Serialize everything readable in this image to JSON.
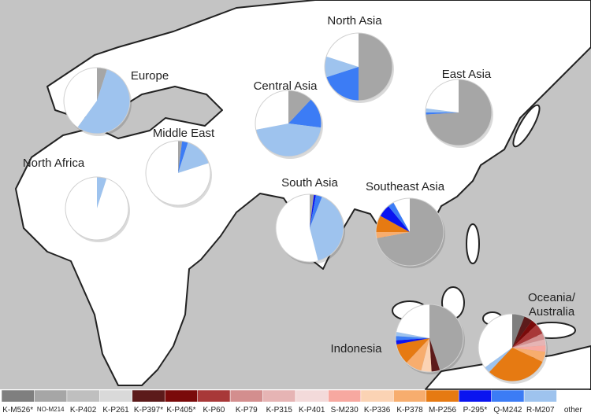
{
  "chart_data": {
    "type": "pie",
    "categories": [
      "K-M526*",
      "NO-M214",
      "K-P402",
      "K-P261",
      "K-P397*",
      "K-P405*",
      "K-P60",
      "K-P79",
      "K-P315",
      "K-P401",
      "S-M230",
      "K-P336",
      "K-P378",
      "M-P256",
      "P-295*",
      "Q-M242",
      "R-M207",
      "other"
    ],
    "colors": [
      "#7f7f7f",
      "#a6a6a6",
      "#bfbfbf",
      "#d9d9d9",
      "#5c1a1a",
      "#7a0a0a",
      "#a83838",
      "#d38e8e",
      "#e6b4b4",
      "#f3dada",
      "#f7a8a0",
      "#fbd3b4",
      "#f7ad6e",
      "#e67a12",
      "#0a14f0",
      "#3c7cf5",
      "#9ec3ee",
      "#ffffff"
    ],
    "series": [
      {
        "name": "Europe",
        "values": [
          0,
          5,
          0,
          0,
          0,
          0,
          0,
          0,
          0,
          0,
          0,
          0,
          0,
          0,
          0,
          0,
          55,
          40
        ]
      },
      {
        "name": "North Asia",
        "values": [
          0,
          50,
          0,
          0,
          0,
          0,
          0,
          0,
          0,
          0,
          0,
          0,
          0,
          0,
          0,
          20,
          10,
          20
        ]
      },
      {
        "name": "East Asia",
        "values": [
          0,
          74,
          0,
          0,
          0,
          0,
          0,
          0,
          0,
          0,
          0,
          0,
          0,
          0,
          0,
          1,
          2,
          23
        ]
      },
      {
        "name": "Central Asia",
        "values": [
          0,
          12,
          0,
          0,
          0,
          0,
          0,
          0,
          0,
          0,
          0,
          0,
          0,
          0,
          0,
          15,
          45,
          28
        ]
      },
      {
        "name": "Middle East",
        "values": [
          0,
          2,
          0,
          0,
          0,
          0,
          0,
          0,
          0,
          0,
          0,
          0,
          0,
          0,
          0,
          3,
          15,
          80
        ]
      },
      {
        "name": "North Africa",
        "values": [
          0,
          0,
          0,
          0,
          0,
          0,
          0,
          0,
          0,
          0,
          0,
          0,
          0,
          0,
          0,
          0,
          5,
          95
        ]
      },
      {
        "name": "South Asia",
        "values": [
          0,
          2,
          0,
          0,
          0,
          0,
          0,
          0,
          0,
          0,
          0,
          0,
          0,
          0,
          1,
          3,
          40,
          54
        ]
      },
      {
        "name": "Southeast Asia",
        "values": [
          0,
          72,
          0,
          0,
          0,
          0,
          0,
          0,
          0,
          0,
          0,
          0,
          3,
          8,
          6,
          3,
          0,
          8
        ]
      },
      {
        "name": "Indonesia",
        "values": [
          0,
          45,
          0,
          0,
          4,
          0,
          0,
          0,
          0,
          0,
          0,
          5,
          8,
          10,
          2,
          2,
          2,
          22
        ]
      },
      {
        "name": "Oceania/ Australia",
        "values": [
          6,
          0,
          0,
          0,
          4,
          3,
          5,
          3,
          3,
          0,
          3,
          0,
          5,
          30,
          0,
          0,
          3,
          35
        ]
      }
    ]
  }
}
